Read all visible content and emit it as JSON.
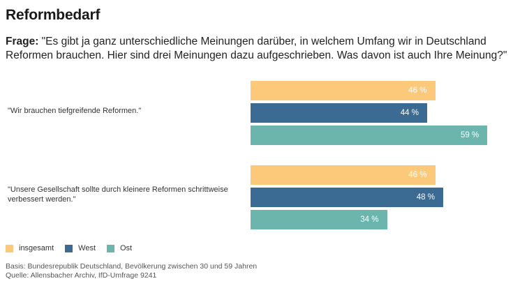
{
  "header": {
    "title": "Reformbedarf",
    "question_prefix": "Frage:",
    "question_text": " \"Es gibt ja ganz unterschiedliche Meinungen darüber, in welchem Umfang wir in Deutschland Reformen brauchen. Hier sind drei Meinungen dazu aufgeschrieben. Was davon ist auch Ihre Meinung?\""
  },
  "chart_data": {
    "type": "bar",
    "orientation": "horizontal",
    "categories": [
      "\"Wir brauchen tiefgreifende Reformen.\"",
      "\"Unsere Gesellschaft sollte durch kleinere Reformen schrittweise verbessert werden.\""
    ],
    "series": [
      {
        "name": "insgesamt",
        "color": "#fcc87a",
        "values": [
          46,
          46
        ]
      },
      {
        "name": "West",
        "color": "#3b6a93",
        "values": [
          44,
          48
        ]
      },
      {
        "name": "Ost",
        "color": "#6bb5ad",
        "values": [
          59,
          34
        ]
      }
    ],
    "value_suffix": "%",
    "xlim": [
      0,
      60
    ],
    "grid": false,
    "legend_position": "bottom-left"
  },
  "footer": {
    "basis": "Basis: Bundesrepublik Deutschland, Bevölkerung zwischen 30 und 59 Jahren",
    "source": "Quelle: Allensbacher Archiv, IfD-Umfrage 9241"
  }
}
